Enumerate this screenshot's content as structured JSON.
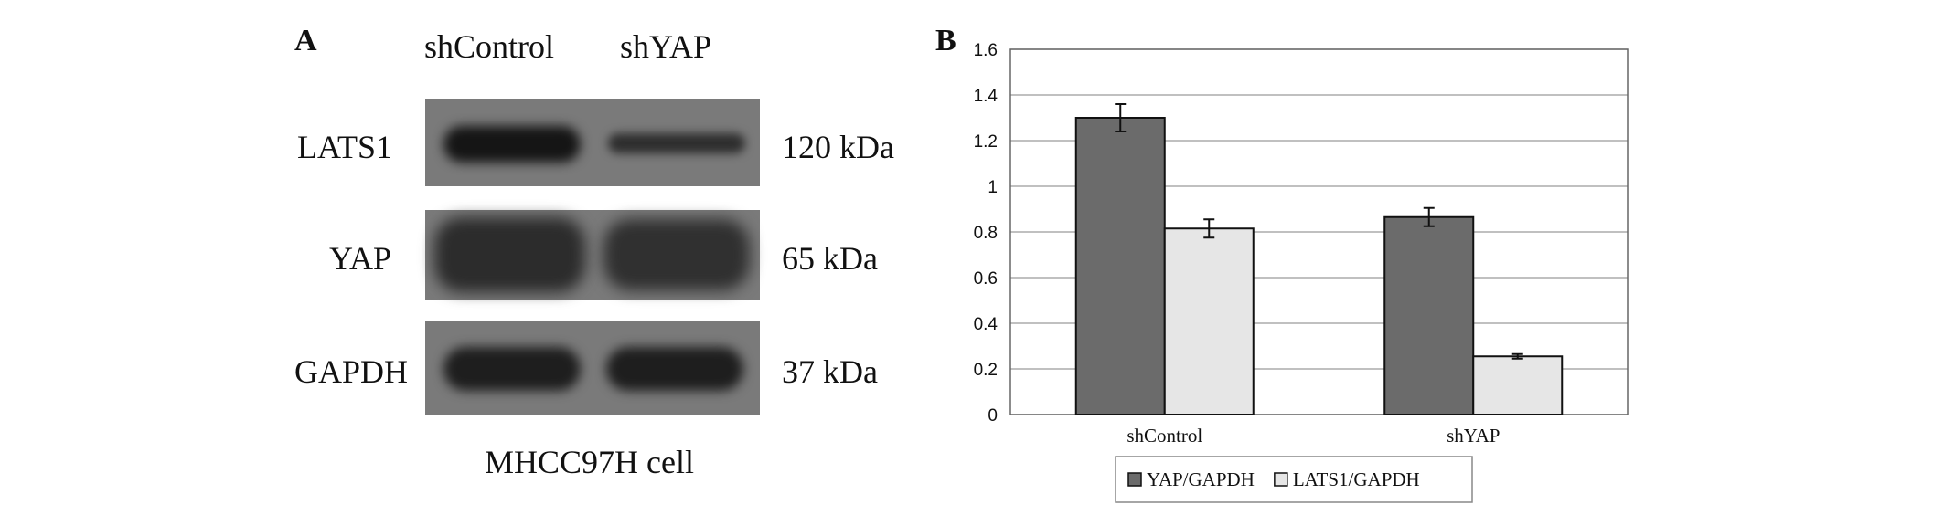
{
  "panel_a": {
    "label": "A",
    "lanes": [
      "shControl",
      "shYAP"
    ],
    "rows": [
      {
        "protein": "LATS1",
        "mw": "120  kDa",
        "band_intensity": [
          0.95,
          0.55
        ]
      },
      {
        "protein": "YAP",
        "mw": "65  kDa",
        "band_intensity": [
          0.8,
          0.75
        ]
      },
      {
        "protein": "GAPDH",
        "mw": "37  kDa",
        "band_intensity": [
          0.85,
          0.85
        ]
      }
    ],
    "cell_line": "MHCC97H cell"
  },
  "chart_data": {
    "panel_label": "B",
    "type": "bar",
    "categories": [
      "shControl",
      "shYAP"
    ],
    "series": [
      {
        "name": "YAP/GAPDH",
        "values": [
          1.3,
          0.865
        ],
        "errors": [
          0.06,
          0.04
        ],
        "color": "#6b6b6b"
      },
      {
        "name": "LATS1/GAPDH",
        "values": [
          0.815,
          0.255
        ],
        "errors": [
          0.04,
          0.01
        ],
        "color": "#e6e6e6"
      }
    ],
    "ylim": [
      0,
      1.6
    ],
    "yticks": [
      "0",
      "0.2",
      "0.4",
      "0.6",
      "0.8",
      "1",
      "1.2",
      "1.4",
      "1.6"
    ],
    "grid": true,
    "legend_position": "bottom"
  }
}
